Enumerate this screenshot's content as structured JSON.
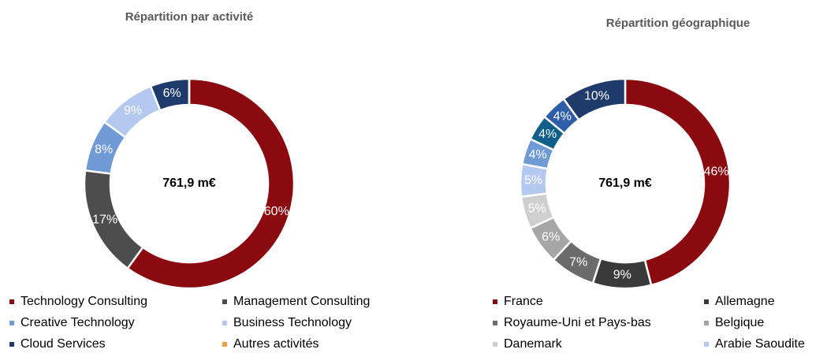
{
  "chart_data": [
    {
      "type": "pie",
      "title": "Répartition par activité",
      "center_label": "761,9 m€",
      "categories": [
        "Technology Consulting",
        "Management Consulting",
        "Creative Technology",
        "Business Technology",
        "Cloud Services",
        "Autres activités"
      ],
      "values": [
        60,
        17,
        8,
        9,
        6,
        0
      ],
      "value_labels": [
        "60%",
        "17%",
        "8%",
        "9%",
        "6%",
        null
      ],
      "colors": [
        "#8b0a0f",
        "#4d4d4d",
        "#6f9ad6",
        "#b4c9ef",
        "#1f3b6b",
        "#e8a04c"
      ]
    },
    {
      "type": "pie",
      "title": "Répartition géographique",
      "center_label": "761,9 m€",
      "categories": [
        "France",
        "Allemagne",
        "Royaume-Uni et Pays-bas",
        "Belgique",
        "Danemark",
        "Arabie Saoudite",
        null,
        null,
        null,
        null
      ],
      "values": [
        46,
        9,
        7,
        6,
        5,
        5,
        4,
        4,
        4,
        10
      ],
      "value_labels": [
        "46%",
        "9%",
        "7%",
        "6%",
        "5%",
        "5%",
        "4%",
        "4%",
        "4%",
        "10%"
      ],
      "colors": [
        "#8b0a0f",
        "#3a3a3a",
        "#6b6b6b",
        "#a6a6a6",
        "#cfcfcf",
        "#b4c9ef",
        "#6f9ad6",
        "#0f5f8a",
        "#2f5ea8",
        "#1f3b6b"
      ]
    }
  ]
}
